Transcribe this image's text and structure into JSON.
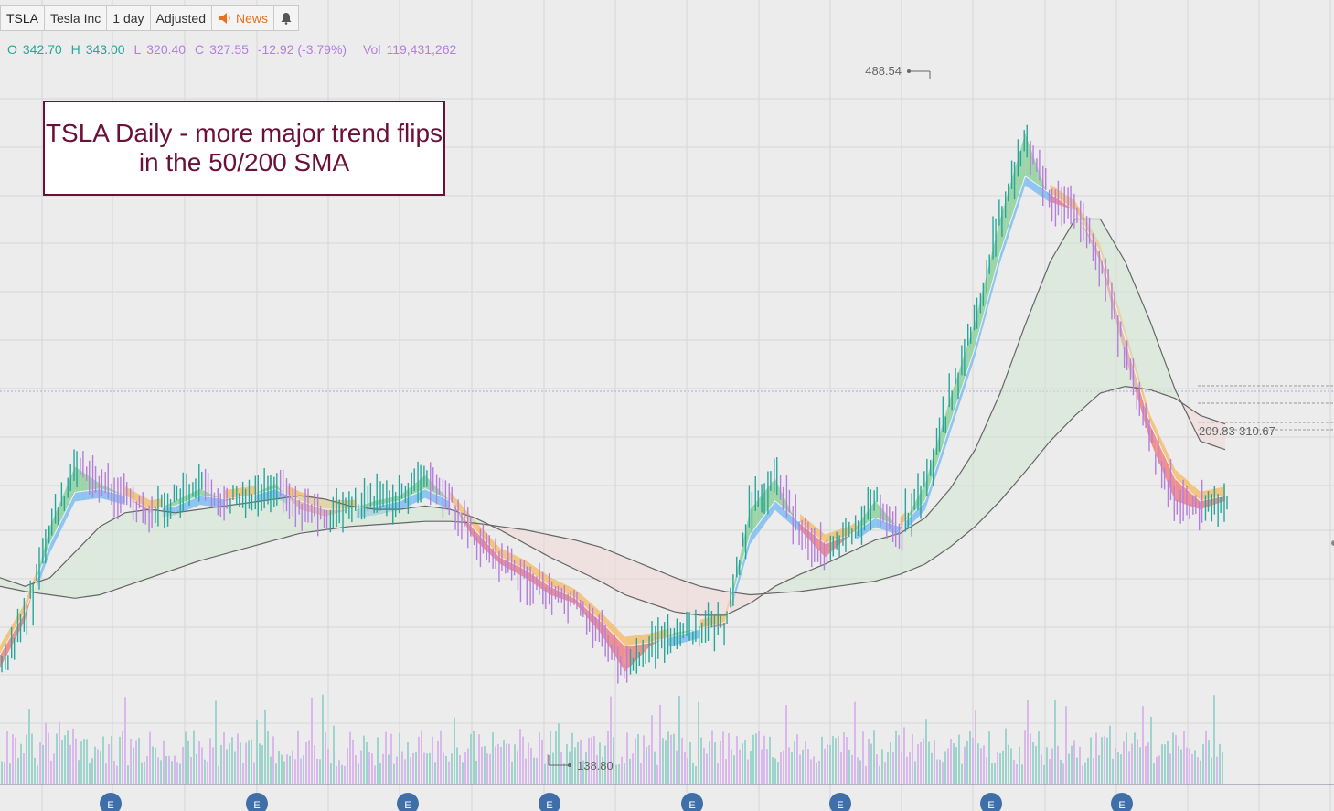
{
  "toolbar": {
    "symbol": "TSLA",
    "name": "Tesla Inc",
    "interval": "1 day",
    "adjusted": "Adjusted",
    "news": "News"
  },
  "ohlc": {
    "o_label": "O",
    "o": "342.70",
    "h_label": "H",
    "h": "343.00",
    "l_label": "L",
    "l": "320.40",
    "c_label": "C",
    "c": "327.55",
    "change": "-12.92 (-3.79%)",
    "vol_label": "Vol",
    "vol": "119,431,262"
  },
  "annotation": "TSLA Daily - more major trend flips in the 50/200 SMA",
  "labels": {
    "high": "488.54",
    "low": "138.80",
    "range": "209.83-310.67"
  },
  "markers": [
    "E",
    "E",
    "E",
    "E",
    "E",
    "E",
    "E",
    "E"
  ],
  "colors": {
    "bg": "#ececec",
    "up": "#26a69a",
    "down": "#b57edc",
    "green_fill": "#8fd19e",
    "blue_fill": "#6fb7f0",
    "red_fill": "#f08080",
    "orange_fill": "#f5b860",
    "annot_border": "#6b1038"
  },
  "chart_data": {
    "type": "line",
    "symbol": "TSLA",
    "interval": "1 day",
    "ylim": [
      120,
      500
    ],
    "x": [
      0,
      10,
      20,
      30,
      40,
      50,
      60,
      70,
      80,
      90,
      100,
      110,
      120,
      130,
      140,
      150,
      160,
      170,
      180,
      190,
      200,
      210,
      220,
      230,
      240,
      250,
      260,
      270,
      280,
      290,
      300,
      310,
      320,
      330,
      340,
      350,
      360,
      370,
      380,
      390,
      400,
      410,
      420,
      430,
      440,
      450,
      460,
      470,
      480,
      490
    ],
    "series": [
      {
        "name": "",
        "values": [
          157,
          185,
          240,
          275,
          265,
          258,
          248,
          255,
          262,
          255,
          258,
          265,
          250,
          246,
          250,
          255,
          258,
          270,
          255,
          232,
          218,
          210,
          200,
          195,
          178,
          155,
          170,
          178,
          180,
          182,
          250,
          268,
          238,
          222,
          235,
          255,
          238,
          265,
          315,
          360,
          420,
          470,
          430,
          425,
          395,
          340,
          290,
          255,
          250,
          255
        ]
      },
      {
        "name": "",
        "values": [
          165,
          190,
          230,
          260,
          262,
          258,
          250,
          252,
          258,
          256,
          258,
          262,
          255,
          250,
          250,
          252,
          255,
          262,
          255,
          238,
          222,
          215,
          205,
          198,
          185,
          170,
          172,
          176,
          180,
          184,
          235,
          255,
          242,
          230,
          235,
          245,
          240,
          255,
          300,
          345,
          400,
          445,
          435,
          425,
          400,
          350,
          300,
          268,
          255,
          258
        ]
      },
      {
        "name": "",
        "values": [
          210,
          205,
          210,
          225,
          240,
          248,
          250,
          248,
          250,
          252,
          254,
          256,
          258,
          256,
          252,
          250,
          250,
          252,
          250,
          245,
          238,
          230,
          222,
          215,
          208,
          200,
          195,
          190,
          188,
          188,
          195,
          205,
          212,
          218,
          225,
          232,
          236,
          245,
          262,
          285,
          318,
          358,
          395,
          420,
          420,
          395,
          360,
          320,
          290,
          285
        ]
      },
      {
        "name": "",
        "values": [
          205,
          202,
          200,
          198,
          200,
          205,
          210,
          215,
          220,
          224,
          228,
          232,
          236,
          238,
          240,
          241,
          242,
          243,
          243,
          242,
          240,
          238,
          235,
          232,
          228,
          222,
          216,
          210,
          205,
          202,
          200,
          201,
          202,
          204,
          206,
          208,
          212,
          218,
          228,
          240,
          255,
          272,
          290,
          305,
          318,
          322,
          320,
          315,
          305,
          300
        ]
      }
    ],
    "high_marker": 488.54,
    "low_marker": 138.8,
    "range_label": "209.83-310.67"
  }
}
